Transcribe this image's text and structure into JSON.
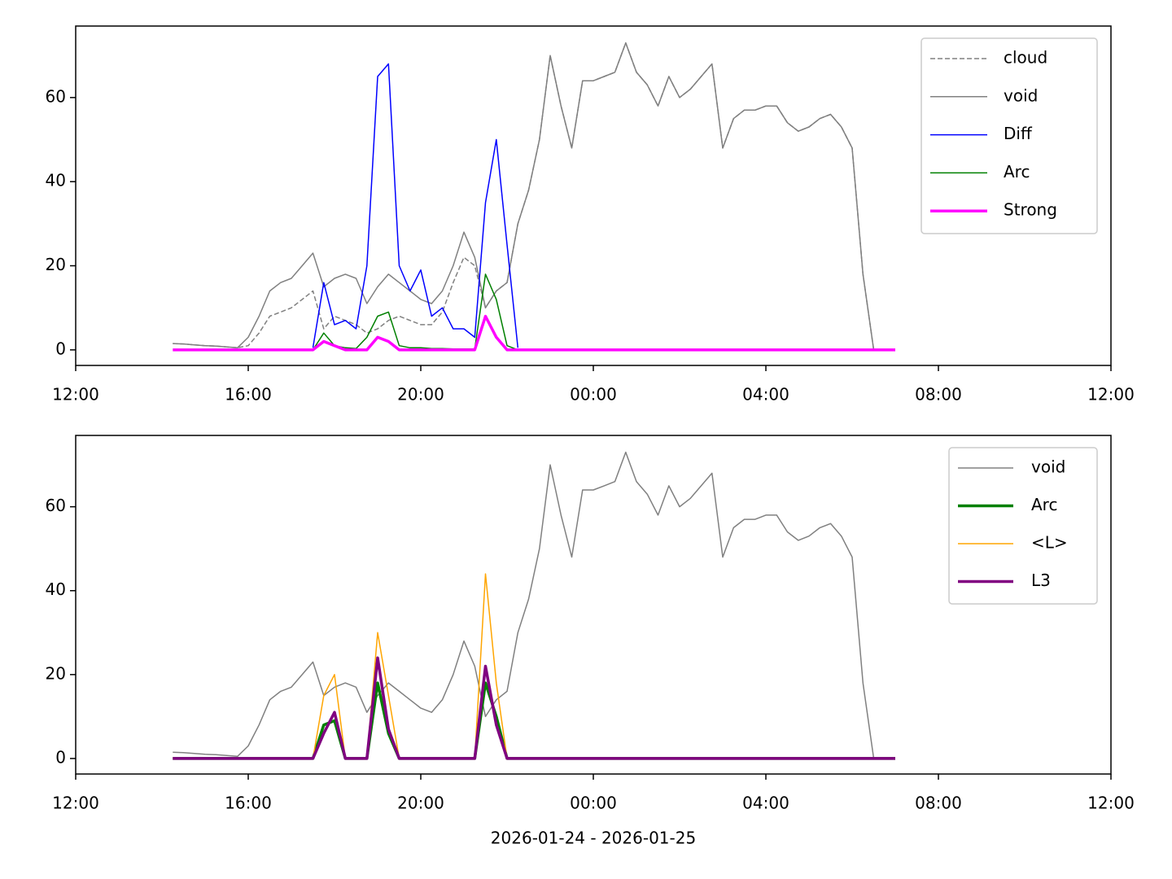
{
  "chart_data": [
    {
      "type": "line",
      "x": [
        14.25,
        14.5,
        14.75,
        15,
        15.25,
        15.5,
        15.75,
        16,
        16.25,
        16.5,
        16.75,
        17,
        17.25,
        17.5,
        17.75,
        18,
        18.25,
        18.5,
        18.75,
        19,
        19.25,
        19.5,
        19.75,
        20,
        20.25,
        20.5,
        20.75,
        21,
        21.25,
        21.5,
        21.75,
        22,
        22.25,
        22.5,
        22.75,
        23,
        23.25,
        23.5,
        23.75,
        24,
        24.25,
        24.5,
        24.75,
        25,
        25.25,
        25.5,
        25.75,
        26,
        26.25,
        26.5,
        26.75,
        27,
        27.25,
        27.5,
        27.75,
        28,
        28.25,
        28.5,
        28.75,
        29,
        29.25,
        29.5,
        29.75,
        30,
        30.25,
        30.5,
        30.75,
        31
      ],
      "series": [
        {
          "name": "cloud",
          "color": "#808080",
          "linestyle": "dashed",
          "linewidth": 1.5,
          "values": [
            1.5,
            1.4,
            1.2,
            1.0,
            0.9,
            0.7,
            0.5,
            1,
            4,
            8,
            9,
            10,
            12,
            14,
            5,
            8,
            7,
            6,
            4,
            5,
            7,
            8,
            7,
            6,
            6,
            9,
            16,
            22,
            20,
            10,
            14,
            16,
            30,
            38,
            50,
            70,
            58,
            48,
            64,
            64,
            65,
            66,
            73,
            66,
            63,
            58,
            65,
            60,
            62,
            65,
            68,
            48,
            55,
            57,
            57,
            58,
            58,
            54,
            52,
            53,
            55,
            56,
            53,
            48,
            18,
            0,
            null,
            null
          ]
        },
        {
          "name": "void",
          "color": "#808080",
          "linestyle": "solid",
          "linewidth": 1.5,
          "values": [
            1.5,
            1.4,
            1.2,
            1.0,
            0.9,
            0.7,
            0.5,
            3,
            8,
            14,
            16,
            17,
            20,
            23,
            15,
            17,
            18,
            17,
            11,
            15,
            18,
            16,
            14,
            12,
            11,
            14,
            20,
            28,
            22,
            10,
            14,
            16,
            30,
            38,
            50,
            70,
            58,
            48,
            64,
            64,
            65,
            66,
            73,
            66,
            63,
            58,
            65,
            60,
            62,
            65,
            68,
            48,
            55,
            57,
            57,
            58,
            58,
            54,
            52,
            53,
            55,
            56,
            53,
            48,
            18,
            0,
            null,
            null
          ]
        },
        {
          "name": "Diff",
          "color": "#0000ff",
          "linestyle": "solid",
          "linewidth": 1.5,
          "values": [
            null,
            null,
            null,
            null,
            null,
            null,
            null,
            null,
            null,
            null,
            null,
            null,
            null,
            0.5,
            16,
            6,
            7,
            5,
            20,
            65,
            68,
            20,
            14,
            19,
            8,
            10,
            5,
            5,
            3,
            35,
            50,
            25,
            0.5,
            null,
            null,
            null,
            null,
            null,
            null,
            null,
            null,
            null,
            null,
            null,
            null,
            null,
            null,
            null,
            null,
            null,
            null,
            null,
            null,
            null,
            null,
            null,
            null,
            null,
            null,
            null,
            null,
            null,
            null,
            null,
            null,
            null,
            null,
            null
          ]
        },
        {
          "name": "Arc",
          "color": "#008000",
          "linestyle": "solid",
          "linewidth": 1.5,
          "values": [
            null,
            null,
            null,
            null,
            null,
            null,
            null,
            null,
            null,
            null,
            null,
            null,
            null,
            0,
            4,
            1,
            0.5,
            0.3,
            3,
            8,
            9,
            1,
            0.5,
            0.5,
            0.3,
            0.3,
            0.2,
            0.2,
            0.2,
            18,
            12,
            1,
            0,
            null,
            null,
            null,
            null,
            null,
            null,
            null,
            null,
            null,
            null,
            null,
            null,
            null,
            null,
            null,
            null,
            null,
            null,
            null,
            null,
            null,
            null,
            null,
            null,
            null,
            null,
            null,
            null,
            null,
            null,
            null,
            null,
            null,
            null,
            null
          ]
        },
        {
          "name": "Strong",
          "color": "#ff00ff",
          "linestyle": "solid",
          "linewidth": 3.5,
          "values": [
            0,
            0,
            0,
            0,
            0,
            0,
            0,
            0,
            0,
            0,
            0,
            0,
            0,
            0,
            2,
            1,
            0,
            0,
            0,
            3,
            2,
            0,
            0,
            0,
            0,
            0,
            0,
            0,
            0,
            8,
            3,
            0,
            0,
            0,
            0,
            0,
            0,
            0,
            0,
            0,
            0,
            0,
            0,
            0,
            0,
            0,
            0,
            0,
            0,
            0,
            0,
            0,
            0,
            0,
            0,
            0,
            0,
            0,
            0,
            0,
            0,
            0,
            0,
            0,
            0,
            0,
            0,
            0
          ]
        }
      ],
      "xlim": [
        12,
        36
      ],
      "xticks": [
        {
          "value": 12,
          "label": "12:00"
        },
        {
          "value": 16,
          "label": "16:00"
        },
        {
          "value": 20,
          "label": "20:00"
        },
        {
          "value": 24,
          "label": "00:00"
        },
        {
          "value": 28,
          "label": "04:00"
        },
        {
          "value": 32,
          "label": "08:00"
        },
        {
          "value": 36,
          "label": "12:00"
        }
      ],
      "ylim": [
        -3.7,
        77
      ],
      "yticks": [
        0,
        20,
        40,
        60
      ],
      "legend": "upper right"
    },
    {
      "type": "line",
      "x": [
        14.25,
        14.5,
        14.75,
        15,
        15.25,
        15.5,
        15.75,
        16,
        16.25,
        16.5,
        16.75,
        17,
        17.25,
        17.5,
        17.75,
        18,
        18.25,
        18.5,
        18.75,
        19,
        19.25,
        19.5,
        19.75,
        20,
        20.25,
        20.5,
        20.75,
        21,
        21.25,
        21.5,
        21.75,
        22,
        22.25,
        22.5,
        22.75,
        23,
        23.25,
        23.5,
        23.75,
        24,
        24.25,
        24.5,
        24.75,
        25,
        25.25,
        25.5,
        25.75,
        26,
        26.25,
        26.5,
        26.75,
        27,
        27.25,
        27.5,
        27.75,
        28,
        28.25,
        28.5,
        28.75,
        29,
        29.25,
        29.5,
        29.75,
        30,
        30.25,
        30.5,
        30.75,
        31
      ],
      "series": [
        {
          "name": "void",
          "color": "#808080",
          "linestyle": "solid",
          "linewidth": 1.5,
          "values": [
            1.5,
            1.4,
            1.2,
            1.0,
            0.9,
            0.7,
            0.5,
            3,
            8,
            14,
            16,
            17,
            20,
            23,
            15,
            17,
            18,
            17,
            11,
            15,
            18,
            16,
            14,
            12,
            11,
            14,
            20,
            28,
            22,
            10,
            14,
            16,
            30,
            38,
            50,
            70,
            58,
            48,
            64,
            64,
            65,
            66,
            73,
            66,
            63,
            58,
            65,
            60,
            62,
            65,
            68,
            48,
            55,
            57,
            57,
            58,
            58,
            54,
            52,
            53,
            55,
            56,
            53,
            48,
            18,
            0,
            null,
            null
          ]
        },
        {
          "name": "Arc",
          "color": "#008000",
          "linestyle": "solid",
          "linewidth": 3.5,
          "values": [
            0,
            0,
            0,
            0,
            0,
            0,
            0,
            0,
            0,
            0,
            0,
            0,
            0,
            0,
            8,
            9,
            0,
            0,
            0,
            18,
            6,
            0,
            0,
            0,
            0,
            0,
            0,
            0,
            0,
            18,
            10,
            0,
            0,
            0,
            0,
            0,
            0,
            0,
            0,
            0,
            0,
            0,
            0,
            0,
            0,
            0,
            0,
            0,
            0,
            0,
            0,
            0,
            0,
            0,
            0,
            0,
            0,
            0,
            0,
            0,
            0,
            0,
            0,
            0,
            0,
            0,
            0,
            0
          ]
        },
        {
          "name": "<L>",
          "color": "#ffa500",
          "linestyle": "solid",
          "linewidth": 1.5,
          "values": [
            0,
            0,
            0,
            0,
            0,
            0,
            0,
            0,
            0,
            0,
            0,
            0,
            0,
            0,
            15,
            20,
            0,
            0,
            0,
            30,
            15,
            0,
            0,
            0,
            0,
            0,
            0,
            0,
            0,
            44,
            18,
            0,
            0,
            0,
            0,
            0,
            0,
            0,
            0,
            0,
            0,
            0,
            0,
            0,
            0,
            0,
            0,
            0,
            0,
            0,
            0,
            0,
            0,
            0,
            0,
            0,
            0,
            0,
            0,
            0,
            0,
            0,
            0,
            0,
            0,
            0,
            0,
            0
          ]
        },
        {
          "name": "L3",
          "color": "#800080",
          "linestyle": "solid",
          "linewidth": 3.5,
          "values": [
            0,
            0,
            0,
            0,
            0,
            0,
            0,
            0,
            0,
            0,
            0,
            0,
            0,
            0,
            6,
            11,
            0,
            0,
            0,
            24,
            7,
            0,
            0,
            0,
            0,
            0,
            0,
            0,
            0,
            22,
            8,
            0,
            0,
            0,
            0,
            0,
            0,
            0,
            0,
            0,
            0,
            0,
            0,
            0,
            0,
            0,
            0,
            0,
            0,
            0,
            0,
            0,
            0,
            0,
            0,
            0,
            0,
            0,
            0,
            0,
            0,
            0,
            0,
            0,
            0,
            0,
            0,
            0
          ]
        }
      ],
      "xlim": [
        12,
        36
      ],
      "xticks": [
        {
          "value": 12,
          "label": "12:00"
        },
        {
          "value": 16,
          "label": "16:00"
        },
        {
          "value": 20,
          "label": "20:00"
        },
        {
          "value": 24,
          "label": "00:00"
        },
        {
          "value": 28,
          "label": "04:00"
        },
        {
          "value": 32,
          "label": "08:00"
        },
        {
          "value": 36,
          "label": "12:00"
        }
      ],
      "ylim": [
        -3.7,
        77
      ],
      "yticks": [
        0,
        20,
        40,
        60
      ],
      "xlabel": "2026-01-24 - 2026-01-25",
      "legend": "upper right"
    }
  ]
}
